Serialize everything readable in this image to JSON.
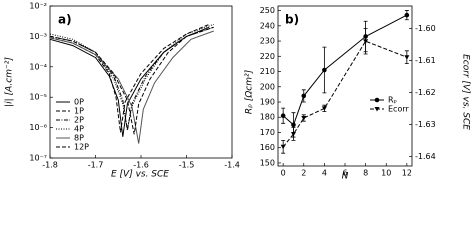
{
  "chart_data": [
    {
      "type": "line",
      "panel_label": "a)",
      "xlabel": "E [V] vs. SCE",
      "ylabel": "|i| [A.cm⁻²]",
      "log_y": true,
      "legend": "lower left",
      "xlim": [
        -1.8,
        -1.4
      ],
      "xticks": [
        -1.8,
        -1.7,
        -1.6,
        -1.5,
        -1.4
      ],
      "ylim": [
        1e-07,
        0.01
      ],
      "yticks": [
        {
          "value": 1e-07,
          "label": "10⁻⁷"
        },
        {
          "value": 1e-06,
          "label": "10⁻⁶"
        },
        {
          "value": 1e-05,
          "label": "10⁻⁵"
        },
        {
          "value": 0.0001,
          "label": "10⁻⁴"
        },
        {
          "value": 0.001,
          "label": "10⁻³"
        },
        {
          "value": 0.01,
          "label": "10⁻²"
        }
      ],
      "series": [
        {
          "name": "0P",
          "color": "#000000",
          "linestyle": "solid",
          "x": [
            -1.8,
            -1.75,
            -1.7,
            -1.67,
            -1.65,
            -1.64,
            -1.63,
            -1.6,
            -1.55,
            -1.5,
            -1.45
          ],
          "values": [
            0.0008,
            0.0005,
            0.0002,
            5e-05,
            8e-06,
            5e-07,
            6e-06,
            4e-05,
            0.0003,
            0.001,
            0.002
          ]
        },
        {
          "name": "1P",
          "color": "#000000",
          "linestyle": "dashed",
          "x": [
            -1.8,
            -1.75,
            -1.7,
            -1.67,
            -1.655,
            -1.645,
            -1.635,
            -1.6,
            -1.55,
            -1.5,
            -1.45
          ],
          "values": [
            0.0009,
            0.0006,
            0.00025,
            6e-05,
            1e-05,
            7e-07,
            7e-06,
            6e-05,
            0.0004,
            0.0012,
            0.0025
          ]
        },
        {
          "name": "2P",
          "color": "#000000",
          "linestyle": "dashdot",
          "x": [
            -1.8,
            -1.75,
            -1.7,
            -1.66,
            -1.64,
            -1.63,
            -1.62,
            -1.59,
            -1.55,
            -1.5,
            -1.44
          ],
          "values": [
            0.001,
            0.0007,
            0.0003,
            5e-05,
            8e-06,
            8e-07,
            6e-06,
            5e-05,
            0.0003,
            0.001,
            0.002
          ]
        },
        {
          "name": "4P",
          "color": "#000000",
          "linestyle": "dotted",
          "x": [
            -1.8,
            -1.75,
            -1.7,
            -1.66,
            -1.64,
            -1.63,
            -1.62,
            -1.59,
            -1.55,
            -1.5,
            -1.44
          ],
          "values": [
            0.0012,
            0.0008,
            0.0003,
            4e-05,
            6e-06,
            9e-07,
            5e-06,
            4e-05,
            0.0003,
            0.0012,
            0.0025
          ]
        },
        {
          "name": "8P",
          "color": "#555555",
          "linestyle": "solid",
          "x": [
            -1.8,
            -1.75,
            -1.7,
            -1.65,
            -1.62,
            -1.605,
            -1.595,
            -1.57,
            -1.53,
            -1.49,
            -1.44
          ],
          "values": [
            0.0009,
            0.0006,
            0.00025,
            4e-05,
            5e-06,
            3e-07,
            4e-06,
            3e-05,
            0.0002,
            0.0008,
            0.0015
          ]
        },
        {
          "name": "12P",
          "color": "#000000",
          "linestyle": "dashed",
          "x": [
            -1.8,
            -1.75,
            -1.7,
            -1.66,
            -1.63,
            -1.615,
            -1.605,
            -1.58,
            -1.54,
            -1.5,
            -1.44
          ],
          "values": [
            0.001,
            0.0007,
            0.0003,
            6e-05,
            8e-06,
            6e-07,
            6e-06,
            4e-05,
            0.0003,
            0.001,
            0.002
          ]
        }
      ]
    },
    {
      "type": "line",
      "panel_label": "b)",
      "xlabel": "N",
      "ylabel": "Rₚ [Ωcm²]",
      "y2label": "Ecorr [V] vs. SCE",
      "legend": "center right",
      "x": [
        0,
        1,
        2,
        4,
        8,
        12
      ],
      "xlim": [
        -0.5,
        12.5
      ],
      "xticks": [
        0,
        2,
        4,
        6,
        8,
        10,
        12
      ],
      "ylim": [
        148,
        253
      ],
      "yticks": [
        150,
        160,
        170,
        180,
        190,
        200,
        210,
        220,
        230,
        240,
        250
      ],
      "y2lim": [
        -1.643,
        -1.593
      ],
      "y2ticks": [
        -1.64,
        -1.63,
        -1.62,
        -1.61,
        {
          "value": -1.6,
          "label": "-1.60"
        }
      ],
      "series": [
        {
          "name": "Rₚ",
          "color": "#000000",
          "linestyle": "solid",
          "marker": "circle",
          "values": [
            181,
            175,
            194,
            211,
            233,
            247
          ],
          "errors": [
            5,
            8,
            4,
            15,
            10,
            3
          ]
        },
        {
          "name": "Ecorr",
          "color": "#000000",
          "linestyle": "dashed",
          "marker": "triangle-down",
          "axis": "y2",
          "values": [
            -1.637,
            -1.633,
            -1.628,
            -1.625,
            -1.604,
            -1.609
          ],
          "errors": [
            0.002,
            0.002,
            0.001,
            0.001,
            0.004,
            0.002
          ]
        }
      ]
    }
  ]
}
